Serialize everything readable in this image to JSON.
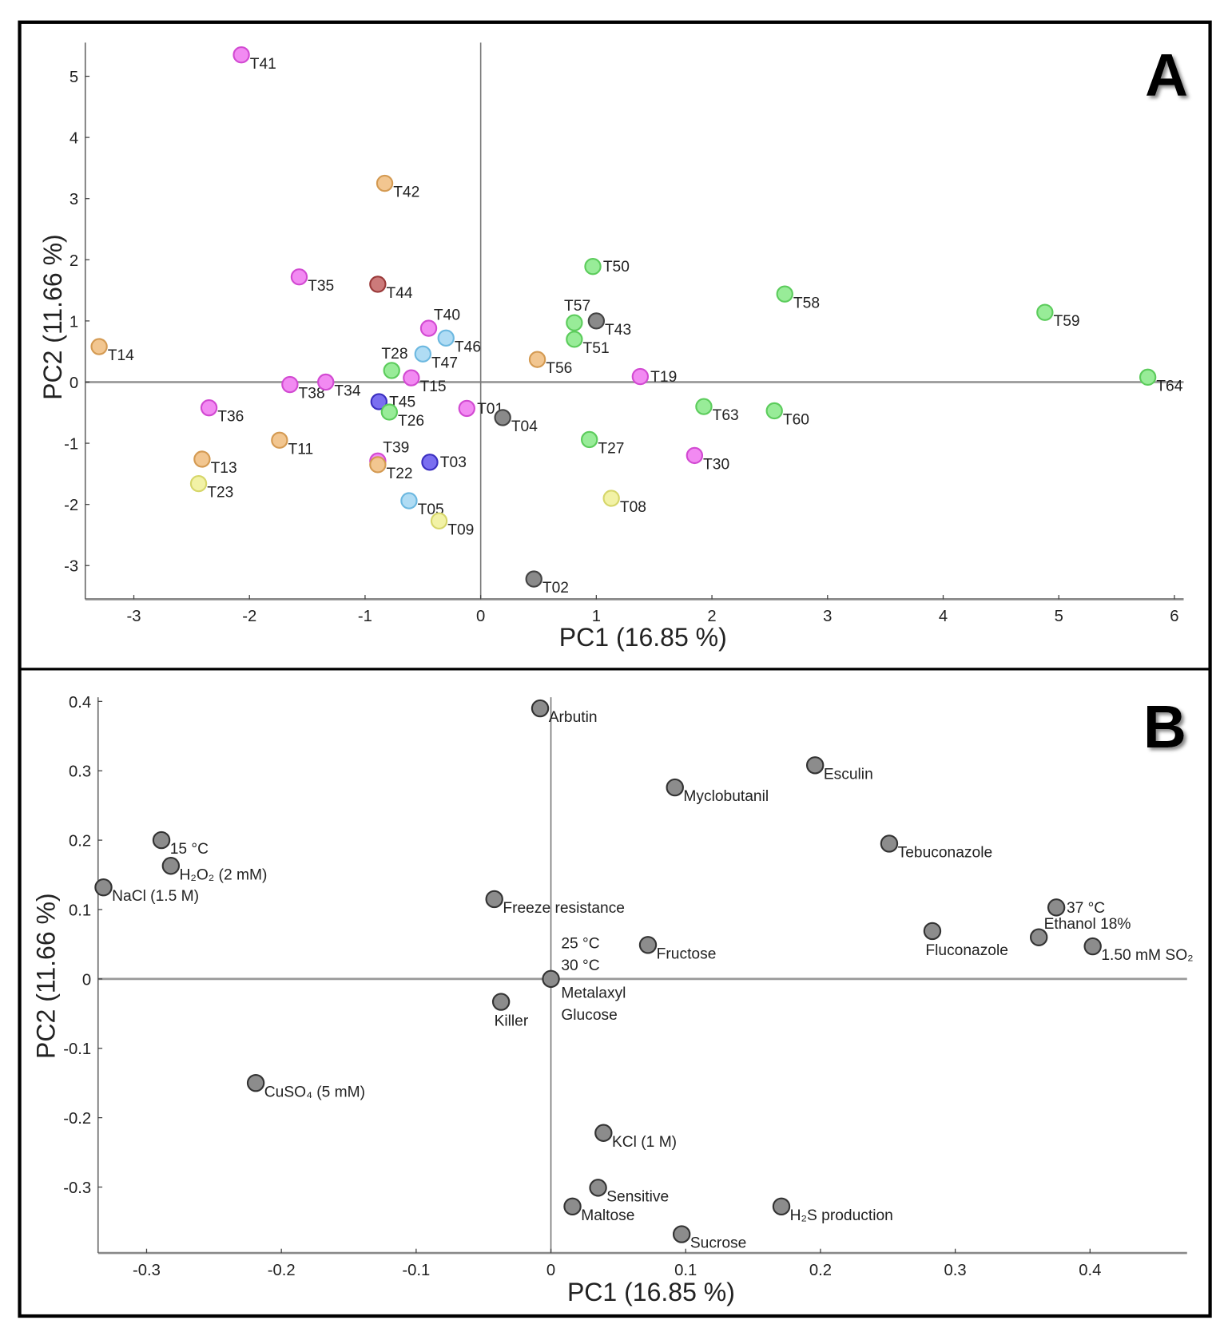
{
  "chart_data": [
    {
      "panel": "A",
      "type": "scatter",
      "xlabel": "PC1 (16.85 %)",
      "ylabel": "PC2 (11.66 %)",
      "xlim": [
        -3.42,
        6.08
      ],
      "ylim": [
        -3.55,
        5.55
      ],
      "xticks": [
        -3,
        -2,
        -1,
        0,
        1,
        2,
        3,
        4,
        5,
        6
      ],
      "yticks": [
        -3,
        -2,
        -1,
        0,
        1,
        2,
        3,
        4,
        5
      ],
      "grid": false,
      "colors": {
        "magenta": "#f28af2",
        "orange": "#f2c690",
        "green": "#98ec98",
        "lightblue": "#b0dcf4",
        "blue": "#7a6ef0",
        "red": "#cc7a7a",
        "gray": "#8a8a8a",
        "yellow": "#f2f2a6"
      },
      "strokes": {
        "magenta": "#d24ad2",
        "orange": "#d49a52",
        "green": "#5ccc5c",
        "lightblue": "#6cb8e0",
        "blue": "#3a2ec0",
        "red": "#9a3a3a",
        "gray": "#444444",
        "yellow": "#d6d66a"
      },
      "points": [
        {
          "label": "T41",
          "x": -2.07,
          "y": 5.35,
          "group": "magenta",
          "pos": "br"
        },
        {
          "label": "T42",
          "x": -0.83,
          "y": 3.25,
          "group": "orange",
          "pos": "br"
        },
        {
          "label": "T35",
          "x": -1.57,
          "y": 1.72,
          "group": "magenta",
          "pos": "br"
        },
        {
          "label": "T44",
          "x": -0.89,
          "y": 1.6,
          "group": "red",
          "pos": "br"
        },
        {
          "label": "T50",
          "x": 0.97,
          "y": 1.89,
          "group": "green",
          "pos": "r"
        },
        {
          "label": "T58",
          "x": 2.63,
          "y": 1.44,
          "group": "green",
          "pos": "br"
        },
        {
          "label": "T59",
          "x": 4.88,
          "y": 1.14,
          "group": "green",
          "pos": "br"
        },
        {
          "label": "T64",
          "x": 5.77,
          "y": 0.08,
          "group": "green",
          "pos": "br"
        },
        {
          "label": "T14",
          "x": -3.3,
          "y": 0.58,
          "group": "orange",
          "pos": "br"
        },
        {
          "label": "T57",
          "x": 0.81,
          "y": 0.97,
          "group": "green",
          "pos": "above"
        },
        {
          "label": "T43",
          "x": 1.0,
          "y": 1.0,
          "group": "gray",
          "pos": "br"
        },
        {
          "label": "T40",
          "x": -0.45,
          "y": 0.88,
          "group": "magenta",
          "pos": "ar"
        },
        {
          "label": "T46",
          "x": -0.3,
          "y": 0.72,
          "group": "lightblue",
          "pos": "br"
        },
        {
          "label": "T51",
          "x": 0.81,
          "y": 0.7,
          "group": "green",
          "pos": "br"
        },
        {
          "label": "T47",
          "x": -0.5,
          "y": 0.46,
          "group": "lightblue",
          "pos": "br"
        },
        {
          "label": "T28",
          "x": -0.77,
          "y": 0.19,
          "group": "green",
          "pos": "above"
        },
        {
          "label": "T15",
          "x": -0.6,
          "y": 0.07,
          "group": "magenta",
          "pos": "br"
        },
        {
          "label": "T56",
          "x": 0.49,
          "y": 0.37,
          "group": "orange",
          "pos": "br"
        },
        {
          "label": "T19",
          "x": 1.38,
          "y": 0.09,
          "group": "magenta",
          "pos": "r"
        },
        {
          "label": "T38",
          "x": -1.65,
          "y": -0.04,
          "group": "magenta",
          "pos": "br"
        },
        {
          "label": "T34",
          "x": -1.34,
          "y": 0.0,
          "group": "magenta",
          "pos": "br"
        },
        {
          "label": "T45",
          "x": -0.88,
          "y": -0.32,
          "group": "blue",
          "pos": "r"
        },
        {
          "label": "T26",
          "x": -0.79,
          "y": -0.49,
          "group": "green",
          "pos": "br"
        },
        {
          "label": "T01",
          "x": -0.12,
          "y": -0.43,
          "group": "magenta",
          "pos": "r"
        },
        {
          "label": "T04",
          "x": 0.19,
          "y": -0.58,
          "group": "gray",
          "pos": "br"
        },
        {
          "label": "T63",
          "x": 1.93,
          "y": -0.4,
          "group": "green",
          "pos": "br"
        },
        {
          "label": "T60",
          "x": 2.54,
          "y": -0.47,
          "group": "green",
          "pos": "br"
        },
        {
          "label": "T36",
          "x": -2.35,
          "y": -0.42,
          "group": "magenta",
          "pos": "br"
        },
        {
          "label": "T11",
          "x": -1.74,
          "y": -0.95,
          "group": "orange",
          "pos": "br"
        },
        {
          "label": "T27",
          "x": 0.94,
          "y": -0.94,
          "group": "green",
          "pos": "br"
        },
        {
          "label": "T30",
          "x": 1.85,
          "y": -1.2,
          "group": "magenta",
          "pos": "br"
        },
        {
          "label": "T13",
          "x": -2.41,
          "y": -1.26,
          "group": "orange",
          "pos": "br"
        },
        {
          "label": "T39",
          "x": -0.89,
          "y": -1.29,
          "group": "magenta",
          "pos": "ar"
        },
        {
          "label": "T22",
          "x": -0.89,
          "y": -1.35,
          "group": "orange",
          "pos": "br"
        },
        {
          "label": "T03",
          "x": -0.44,
          "y": -1.31,
          "group": "blue",
          "pos": "r"
        },
        {
          "label": "T23",
          "x": -2.44,
          "y": -1.66,
          "group": "yellow",
          "pos": "br"
        },
        {
          "label": "T05",
          "x": -0.62,
          "y": -1.94,
          "group": "lightblue",
          "pos": "br"
        },
        {
          "label": "T08",
          "x": 1.13,
          "y": -1.9,
          "group": "yellow",
          "pos": "br"
        },
        {
          "label": "T09",
          "x": -0.36,
          "y": -2.27,
          "group": "yellow",
          "pos": "br"
        },
        {
          "label": "T02",
          "x": 0.46,
          "y": -3.22,
          "group": "gray",
          "pos": "br"
        }
      ]
    },
    {
      "panel": "B",
      "type": "scatter",
      "xlabel": "PC1 (16.85 %)",
      "ylabel": "PC2 (11.66 %)",
      "xlim": [
        -0.336,
        0.472
      ],
      "ylim": [
        -0.395,
        0.406
      ],
      "xticks": [
        -0.3,
        -0.2,
        -0.1,
        0,
        0.1,
        0.2,
        0.3,
        0.4
      ],
      "yticks": [
        -0.3,
        -0.2,
        -0.1,
        0,
        0.1,
        0.2,
        0.3,
        0.4
      ],
      "grid": false,
      "point_color": "#8c8c8c",
      "points": [
        {
          "labels": [
            "Arbutin"
          ],
          "x": -0.008,
          "y": 0.39,
          "pos": "br"
        },
        {
          "labels": [
            "Esculin"
          ],
          "x": 0.196,
          "y": 0.308,
          "pos": "br"
        },
        {
          "labels": [
            "Myclobutanil"
          ],
          "x": 0.092,
          "y": 0.276,
          "pos": "br"
        },
        {
          "labels": [
            "15 °C"
          ],
          "x": -0.289,
          "y": 0.2,
          "pos": "br"
        },
        {
          "labels": [
            "Tebuconazole"
          ],
          "x": 0.251,
          "y": 0.195,
          "pos": "br"
        },
        {
          "labels": [
            "H₂O₂ (2 mM)"
          ],
          "x": -0.282,
          "y": 0.163,
          "pos": "br"
        },
        {
          "labels": [
            "NaCl (1.5 M)"
          ],
          "x": -0.332,
          "y": 0.132,
          "pos": "br"
        },
        {
          "labels": [
            "Freeze resistance"
          ],
          "x": -0.042,
          "y": 0.115,
          "pos": "br"
        },
        {
          "labels": [
            "37 °C"
          ],
          "x": 0.375,
          "y": 0.103,
          "pos": "r"
        },
        {
          "labels": [
            "Fluconazole"
          ],
          "x": 0.283,
          "y": 0.069,
          "pos": "b"
        },
        {
          "labels": [
            "Ethanol 18%"
          ],
          "x": 0.362,
          "y": 0.06,
          "pos": "ar"
        },
        {
          "labels": [
            "1.50 mM SO₂"
          ],
          "x": 0.402,
          "y": 0.047,
          "pos": "br"
        },
        {
          "labels": [
            "Fructose"
          ],
          "x": 0.072,
          "y": 0.049,
          "pos": "br"
        },
        {
          "labels": [
            "25 °C",
            "30 °C",
            "Metalaxyl",
            "Glucose"
          ],
          "x": 0.0,
          "y": 0.0,
          "pos": "stack"
        },
        {
          "labels": [
            "Killer"
          ],
          "x": -0.037,
          "y": -0.033,
          "pos": "b"
        },
        {
          "labels": [
            "CuSO₄ (5 mM)"
          ],
          "x": -0.219,
          "y": -0.15,
          "pos": "br"
        },
        {
          "labels": [
            "KCl (1 M)"
          ],
          "x": 0.039,
          "y": -0.222,
          "pos": "br"
        },
        {
          "labels": [
            "Sensitive"
          ],
          "x": 0.035,
          "y": -0.301,
          "pos": "br"
        },
        {
          "labels": [
            "Maltose"
          ],
          "x": 0.016,
          "y": -0.328,
          "pos": "br"
        },
        {
          "labels": [
            "H₂S production"
          ],
          "x": 0.171,
          "y": -0.328,
          "pos": "br"
        },
        {
          "labels": [
            "Sucrose"
          ],
          "x": 0.097,
          "y": -0.368,
          "pos": "br"
        }
      ]
    }
  ]
}
